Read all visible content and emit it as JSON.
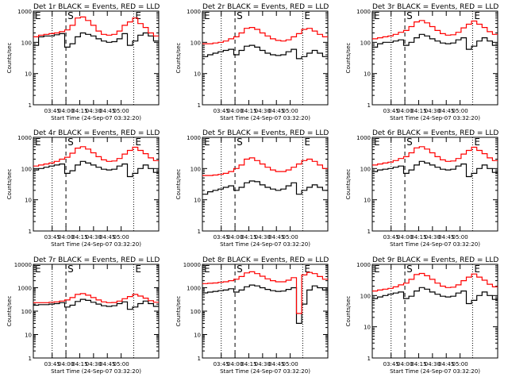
{
  "colors": {
    "events": "#000000",
    "lld": "#ff0000",
    "background": "#ffffff"
  },
  "chart_data": [
    {
      "type": "line",
      "title": "Det 1r BLACK = Events, RED = LLD",
      "xlabel": "Start Time (24-Sep-07 03:32:20)",
      "ylabel": "Counts/sec",
      "yscale": "log",
      "ylim": [
        1,
        1000
      ],
      "x_ticks": [
        "03:45",
        "04:00",
        "04:15",
        "04:30",
        "04:45",
        "05:00"
      ],
      "y_ticks": [
        "1",
        "10",
        "100",
        "1000"
      ],
      "grid": false,
      "markers": [
        "E",
        "S",
        "E"
      ],
      "series": [
        {
          "name": "Events",
          "color": "#000000",
          "values": [
            80,
            150,
            160,
            160,
            175,
            190,
            70,
            90,
            150,
            200,
            180,
            160,
            130,
            110,
            100,
            105,
            130,
            190,
            80,
            110,
            170,
            200,
            160,
            110
          ]
        },
        {
          "name": "LLD",
          "color": "#ff0000",
          "values": [
            150,
            170,
            180,
            190,
            200,
            220,
            250,
            350,
            600,
            650,
            500,
            350,
            230,
            180,
            170,
            180,
            230,
            350,
            450,
            600,
            400,
            300,
            200,
            160
          ]
        }
      ]
    },
    {
      "type": "line",
      "title": "Det 2r BLACK = Events, RED = LLD",
      "xlabel": "Start Time (24-Sep-07 03:32:20)",
      "ylabel": "Counts/sec",
      "yscale": "log",
      "ylim": [
        1,
        1000
      ],
      "x_ticks": [
        "03:45",
        "04:00",
        "04:15",
        "04:30",
        "04:45",
        "05:00"
      ],
      "y_ticks": [
        "1",
        "10",
        "100",
        "1000"
      ],
      "grid": false,
      "markers": [
        "E",
        "S",
        "E"
      ],
      "series": [
        {
          "name": "Events",
          "color": "#000000",
          "values": [
            35,
            40,
            45,
            50,
            55,
            60,
            40,
            55,
            75,
            80,
            70,
            55,
            45,
            40,
            38,
            40,
            50,
            60,
            30,
            35,
            45,
            55,
            45,
            35
          ]
        },
        {
          "name": "LLD",
          "color": "#ff0000",
          "values": [
            90,
            90,
            95,
            100,
            110,
            130,
            150,
            200,
            280,
            300,
            260,
            200,
            160,
            130,
            115,
            110,
            120,
            150,
            190,
            260,
            280,
            230,
            180,
            150
          ]
        }
      ]
    },
    {
      "type": "line",
      "title": "Det 3r BLACK = Events, RED = LLD",
      "xlabel": "Start Time (24-Sep-07 03:32:20)",
      "ylabel": "Counts/sec",
      "yscale": "log",
      "ylim": [
        1,
        1000
      ],
      "x_ticks": [
        "03:45",
        "04:00",
        "04:15",
        "04:30",
        "04:45",
        "05:00"
      ],
      "y_ticks": [
        "1",
        "10",
        "100",
        "1000"
      ],
      "grid": false,
      "markers": [
        "E",
        "S",
        "E"
      ],
      "series": [
        {
          "name": "Events",
          "color": "#000000",
          "values": [
            70,
            90,
            100,
            100,
            110,
            120,
            80,
            100,
            140,
            180,
            160,
            130,
            110,
            95,
            90,
            95,
            120,
            140,
            60,
            75,
            110,
            140,
            110,
            80
          ]
        },
        {
          "name": "LLD",
          "color": "#ff0000",
          "values": [
            130,
            140,
            150,
            160,
            180,
            210,
            240,
            320,
            450,
            500,
            420,
            320,
            240,
            190,
            170,
            175,
            210,
            290,
            380,
            480,
            380,
            300,
            220,
            180
          ]
        }
      ]
    },
    {
      "type": "line",
      "title": "Det 4r BLACK = Events, RED = LLD",
      "xlabel": "Start Time (24-Sep-07 03:32:20)",
      "ylabel": "Counts/sec",
      "yscale": "log",
      "ylim": [
        1,
        1000
      ],
      "x_ticks": [
        "03:45",
        "04:00",
        "04:15",
        "04:30",
        "04:45",
        "05:00"
      ],
      "y_ticks": [
        "1",
        "10",
        "100",
        "1000"
      ],
      "grid": false,
      "markers": [
        "E",
        "S",
        "E"
      ],
      "series": [
        {
          "name": "Events",
          "color": "#000000",
          "values": [
            90,
            100,
            110,
            120,
            130,
            140,
            70,
            85,
            130,
            170,
            150,
            130,
            110,
            95,
            90,
            95,
            120,
            140,
            55,
            70,
            100,
            130,
            100,
            75
          ]
        },
        {
          "name": "LLD",
          "color": "#ff0000",
          "values": [
            120,
            130,
            140,
            150,
            170,
            200,
            230,
            310,
            450,
            500,
            420,
            320,
            240,
            190,
            170,
            175,
            210,
            290,
            380,
            480,
            380,
            300,
            220,
            180
          ]
        }
      ]
    },
    {
      "type": "line",
      "title": "Det 5r BLACK = Events, RED = LLD",
      "xlabel": "Start Time (24-Sep-07 03:32:20)",
      "ylabel": "Counts/sec",
      "yscale": "log",
      "ylim": [
        1,
        1000
      ],
      "x_ticks": [
        "03:45",
        "04:00",
        "04:15",
        "04:30",
        "04:45",
        "05:00"
      ],
      "y_ticks": [
        "1",
        "10",
        "100",
        "1000"
      ],
      "grid": false,
      "markers": [
        "E",
        "S",
        "E"
      ],
      "series": [
        {
          "name": "Events",
          "color": "#000000",
          "values": [
            15,
            18,
            20,
            22,
            25,
            28,
            20,
            25,
            35,
            40,
            38,
            30,
            25,
            22,
            20,
            22,
            28,
            35,
            15,
            20,
            25,
            30,
            25,
            20
          ]
        },
        {
          "name": "LLD",
          "color": "#ff0000",
          "values": [
            60,
            60,
            62,
            65,
            70,
            80,
            100,
            130,
            200,
            220,
            180,
            140,
            110,
            90,
            80,
            80,
            90,
            110,
            140,
            180,
            200,
            170,
            130,
            100
          ]
        }
      ]
    },
    {
      "type": "line",
      "title": "Det 6r BLACK = Events, RED = LLD",
      "xlabel": "Start Time (24-Sep-07 03:32:20)",
      "ylabel": "Counts/sec",
      "yscale": "log",
      "ylim": [
        1,
        1000
      ],
      "x_ticks": [
        "03:45",
        "04:00",
        "04:15",
        "04:30",
        "04:45",
        "05:00"
      ],
      "y_ticks": [
        "1",
        "10",
        "100",
        "1000"
      ],
      "grid": false,
      "markers": [
        "E",
        "S",
        "E"
      ],
      "series": [
        {
          "name": "Events",
          "color": "#000000",
          "values": [
            80,
            90,
            95,
            100,
            110,
            120,
            70,
            90,
            130,
            170,
            150,
            130,
            110,
            95,
            90,
            95,
            120,
            140,
            55,
            70,
            100,
            130,
            100,
            75
          ]
        },
        {
          "name": "LLD",
          "color": "#ff0000",
          "values": [
            130,
            140,
            150,
            160,
            180,
            210,
            240,
            320,
            460,
            500,
            420,
            320,
            240,
            190,
            170,
            175,
            210,
            290,
            380,
            480,
            380,
            300,
            220,
            180
          ]
        }
      ]
    },
    {
      "type": "line",
      "title": "Det 7r BLACK = Events, RED = LLD",
      "xlabel": "Start Time (24-Sep-07 03:32:20)",
      "ylabel": "Counts/sec",
      "yscale": "log",
      "ylim": [
        1,
        10000
      ],
      "x_ticks": [
        "03:45",
        "04:00",
        "04:15",
        "04:30",
        "04:45",
        "05:00"
      ],
      "y_ticks": [
        "1",
        "10",
        "100",
        "1000",
        "10000"
      ],
      "grid": false,
      "markers": [
        "E",
        "S",
        "E"
      ],
      "series": [
        {
          "name": "Events",
          "color": "#000000",
          "values": [
            180,
            190,
            190,
            200,
            210,
            230,
            150,
            180,
            260,
            320,
            290,
            240,
            200,
            170,
            160,
            170,
            210,
            250,
            120,
            150,
            210,
            270,
            210,
            160
          ]
        },
        {
          "name": "LLD",
          "color": "#ff0000",
          "values": [
            230,
            230,
            230,
            240,
            250,
            270,
            300,
            380,
            520,
            560,
            480,
            380,
            300,
            250,
            230,
            235,
            270,
            340,
            420,
            520,
            440,
            360,
            280,
            240
          ]
        }
      ]
    },
    {
      "type": "line",
      "title": "Det 8r BLACK = Events, RED = LLD",
      "xlabel": "Start Time (24-Sep-07 03:32:20)",
      "ylabel": "Counts/sec",
      "yscale": "log",
      "ylim": [
        1,
        10000
      ],
      "x_ticks": [
        "03:45",
        "04:00",
        "04:15",
        "04:30",
        "04:45",
        "05:00"
      ],
      "y_ticks": [
        "1",
        "10",
        "100",
        "1000",
        "10000"
      ],
      "grid": false,
      "markers": [
        "E",
        "S",
        "E"
      ],
      "series": [
        {
          "name": "Events",
          "color": "#000000",
          "values": [
            600,
            650,
            700,
            750,
            800,
            900,
            650,
            800,
            1100,
            1300,
            1200,
            1000,
            850,
            750,
            700,
            720,
            850,
            1000,
            30,
            200,
            800,
            1200,
            1000,
            800
          ]
        },
        {
          "name": "LLD",
          "color": "#ff0000",
          "values": [
            1500,
            1550,
            1600,
            1700,
            1800,
            2000,
            2300,
            3000,
            4300,
            4800,
            4000,
            3100,
            2400,
            2000,
            1800,
            1800,
            2100,
            2700,
            80,
            3500,
            4500,
            4000,
            3000,
            2300
          ]
        }
      ]
    },
    {
      "type": "line",
      "title": "Det 9r BLACK = Events, RED = LLD",
      "xlabel": "Start Time (24-Sep-07 03:32:20)",
      "ylabel": "Counts/sec",
      "yscale": "log",
      "ylim": [
        1,
        1000
      ],
      "x_ticks": [
        "03:45",
        "04:00",
        "04:15",
        "04:30",
        "04:45",
        "05:00"
      ],
      "y_ticks": [
        "1",
        "10",
        "100",
        "1000"
      ],
      "grid": false,
      "markers": [
        "E",
        "S",
        "E"
      ],
      "series": [
        {
          "name": "Events",
          "color": "#000000",
          "values": [
            80,
            90,
            100,
            110,
            120,
            130,
            80,
            95,
            140,
            180,
            160,
            130,
            110,
            95,
            90,
            95,
            120,
            140,
            55,
            70,
            100,
            130,
            100,
            75
          ]
        },
        {
          "name": "LLD",
          "color": "#ff0000",
          "values": [
            140,
            150,
            160,
            170,
            190,
            220,
            250,
            330,
            470,
            510,
            430,
            330,
            250,
            200,
            180,
            185,
            220,
            300,
            390,
            490,
            390,
            310,
            230,
            190
          ]
        }
      ]
    }
  ]
}
